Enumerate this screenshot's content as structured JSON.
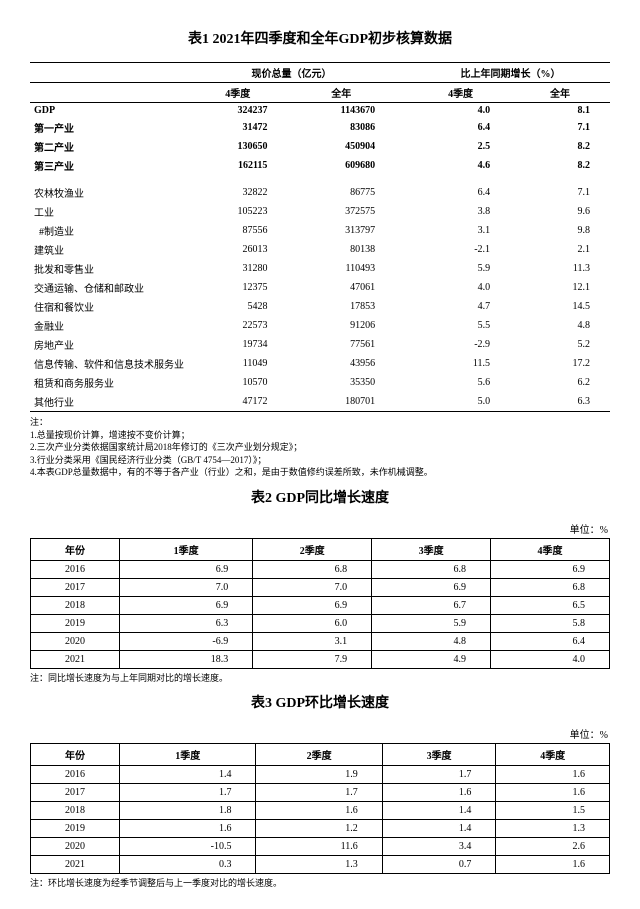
{
  "table1": {
    "title": "表1  2021年四季度和全年GDP初步核算数据",
    "hdr_group_left": "现价总量（亿元）",
    "hdr_group_right": "比上年同期增长（%）",
    "hdr_q4": "4季度",
    "hdr_full": "全年",
    "rows_main": [
      {
        "label": "GDP",
        "q4v": "324237",
        "fyv": "1143670",
        "q4g": "4.0",
        "fyg": "8.1",
        "bold": true
      },
      {
        "label": "第一产业",
        "q4v": "31472",
        "fyv": "83086",
        "q4g": "6.4",
        "fyg": "7.1",
        "bold": true
      },
      {
        "label": "第二产业",
        "q4v": "130650",
        "fyv": "450904",
        "q4g": "2.5",
        "fyg": "8.2",
        "bold": true
      },
      {
        "label": "第三产业",
        "q4v": "162115",
        "fyv": "609680",
        "q4g": "4.6",
        "fyg": "8.2",
        "bold": true
      }
    ],
    "rows_detail": [
      {
        "label": "农林牧渔业",
        "q4v": "32822",
        "fyv": "86775",
        "q4g": "6.4",
        "fyg": "7.1"
      },
      {
        "label": "工业",
        "q4v": "105223",
        "fyv": "372575",
        "q4g": "3.8",
        "fyg": "9.6"
      },
      {
        "label": "#制造业",
        "q4v": "87556",
        "fyv": "313797",
        "q4g": "3.1",
        "fyg": "9.8",
        "indent": true
      },
      {
        "label": "建筑业",
        "q4v": "26013",
        "fyv": "80138",
        "q4g": "-2.1",
        "fyg": "2.1"
      },
      {
        "label": "批发和零售业",
        "q4v": "31280",
        "fyv": "110493",
        "q4g": "5.9",
        "fyg": "11.3"
      },
      {
        "label": "交通运输、仓储和邮政业",
        "q4v": "12375",
        "fyv": "47061",
        "q4g": "4.0",
        "fyg": "12.1"
      },
      {
        "label": "住宿和餐饮业",
        "q4v": "5428",
        "fyv": "17853",
        "q4g": "4.7",
        "fyg": "14.5"
      },
      {
        "label": "金融业",
        "q4v": "22573",
        "fyv": "91206",
        "q4g": "5.5",
        "fyg": "4.8"
      },
      {
        "label": "房地产业",
        "q4v": "19734",
        "fyv": "77561",
        "q4g": "-2.9",
        "fyg": "5.2"
      },
      {
        "label": "信息传输、软件和信息技术服务业",
        "q4v": "11049",
        "fyv": "43956",
        "q4g": "11.5",
        "fyg": "17.2"
      },
      {
        "label": "租赁和商务服务业",
        "q4v": "10570",
        "fyv": "35350",
        "q4g": "5.6",
        "fyg": "6.2"
      },
      {
        "label": "其他行业",
        "q4v": "47172",
        "fyv": "180701",
        "q4g": "5.0",
        "fyg": "6.3"
      }
    ],
    "notes_label": "注：",
    "notes": [
      "1.总量按现价计算，增速按不变价计算；",
      "2.三次产业分类依据国家统计局2018年修订的《三次产业划分规定》；",
      "3.行业分类采用《国民经济行业分类（GB/T 4754—2017）》；",
      "4.本表GDP总量数据中，有的不等于各产业（行业）之和，是由于数值修约误差所致，未作机械调整。"
    ]
  },
  "table2": {
    "title": "表2  GDP同比增长速度",
    "unit": "单位：%",
    "hdr_year": "年份",
    "hdr_q1": "1季度",
    "hdr_q2": "2季度",
    "hdr_q3": "3季度",
    "hdr_q4": "4季度",
    "rows": [
      {
        "y": "2016",
        "q1": "6.9",
        "q2": "6.8",
        "q3": "6.8",
        "q4": "6.9"
      },
      {
        "y": "2017",
        "q1": "7.0",
        "q2": "7.0",
        "q3": "6.9",
        "q4": "6.8"
      },
      {
        "y": "2018",
        "q1": "6.9",
        "q2": "6.9",
        "q3": "6.7",
        "q4": "6.5"
      },
      {
        "y": "2019",
        "q1": "6.3",
        "q2": "6.0",
        "q3": "5.9",
        "q4": "5.8"
      },
      {
        "y": "2020",
        "q1": "-6.9",
        "q2": "3.1",
        "q3": "4.8",
        "q4": "6.4"
      },
      {
        "y": "2021",
        "q1": "18.3",
        "q2": "7.9",
        "q3": "4.9",
        "q4": "4.0"
      }
    ],
    "footnote": "注：同比增长速度为与上年同期对比的增长速度。"
  },
  "table3": {
    "title": "表3  GDP环比增长速度",
    "unit": "单位：%",
    "hdr_year": "年份",
    "hdr_q1": "1季度",
    "hdr_q2": "2季度",
    "hdr_q3": "3季度",
    "hdr_q4": "4季度",
    "rows": [
      {
        "y": "2016",
        "q1": "1.4",
        "q2": "1.9",
        "q3": "1.7",
        "q4": "1.6"
      },
      {
        "y": "2017",
        "q1": "1.7",
        "q2": "1.7",
        "q3": "1.6",
        "q4": "1.6"
      },
      {
        "y": "2018",
        "q1": "1.8",
        "q2": "1.6",
        "q3": "1.4",
        "q4": "1.5"
      },
      {
        "y": "2019",
        "q1": "1.6",
        "q2": "1.2",
        "q3": "1.4",
        "q4": "1.3"
      },
      {
        "y": "2020",
        "q1": "-10.5",
        "q2": "11.6",
        "q3": "3.4",
        "q4": "2.6"
      },
      {
        "y": "2021",
        "q1": "0.3",
        "q2": "1.3",
        "q3": "0.7",
        "q4": "1.6"
      }
    ],
    "footnote": "注：环比增长速度为经季节调整后与上一季度对比的增长速度。"
  }
}
